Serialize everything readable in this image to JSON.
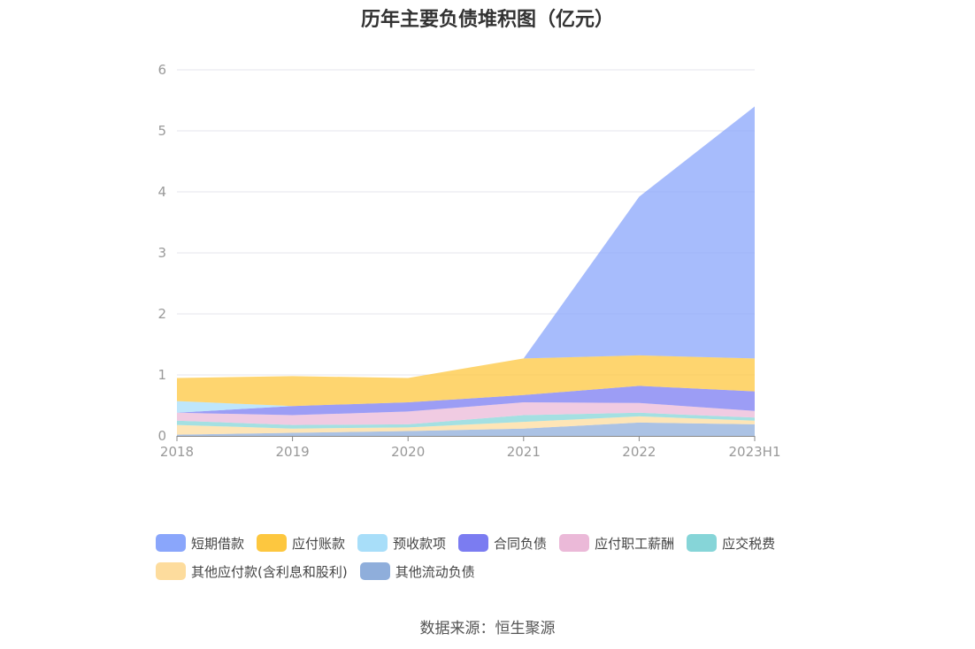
{
  "title": "历年主要负债堆积图（亿元）",
  "source": "数据来源：恒生聚源",
  "colors": {
    "短期借款": "#8aa6fb",
    "应付账款": "#fdc73f",
    "预收款项": "#a8def9",
    "合同负债": "#7b7cf1",
    "应付职工薪酬": "#ebb9d8",
    "应交税费": "#86d5d8",
    "其他应付款(含利息和股利)": "#fddc9d",
    "其他流动负债": "#8faedb"
  },
  "chart_data": {
    "type": "area",
    "stacked": true,
    "title": "历年主要负债堆积图（亿元）",
    "categories": [
      "2018",
      "2019",
      "2020",
      "2021",
      "2022",
      "2023H1"
    ],
    "ylim": [
      0,
      6
    ],
    "yticks": [
      0,
      1,
      2,
      3,
      4,
      5,
      6
    ],
    "grid": true,
    "legend_position": "bottom",
    "series": [
      {
        "name": "其他流动负债",
        "values": [
          0.02,
          0.05,
          0.08,
          0.12,
          0.22,
          0.19
        ]
      },
      {
        "name": "其他应付款(含利息和股利)",
        "values": [
          0.16,
          0.07,
          0.06,
          0.11,
          0.1,
          0.06
        ]
      },
      {
        "name": "应交税费",
        "values": [
          0.07,
          0.06,
          0.05,
          0.11,
          0.06,
          0.05
        ]
      },
      {
        "name": "应付职工薪酬",
        "values": [
          0.13,
          0.16,
          0.21,
          0.21,
          0.16,
          0.11
        ]
      },
      {
        "name": "合同负债",
        "values": [
          0.0,
          0.15,
          0.15,
          0.12,
          0.28,
          0.32
        ]
      },
      {
        "name": "预收款项",
        "values": [
          0.19,
          0.0,
          0.0,
          0.0,
          0.0,
          0.0
        ]
      },
      {
        "name": "应付账款",
        "values": [
          0.38,
          0.49,
          0.4,
          0.6,
          0.5,
          0.54
        ]
      },
      {
        "name": "短期借款",
        "values": [
          0.0,
          0.0,
          0.0,
          0.0,
          2.6,
          4.13
        ]
      }
    ]
  },
  "legend": {
    "rows": [
      [
        "短期借款",
        "应付账款",
        "预收款项",
        "合同负债",
        "应付职工薪酬",
        "应交税费"
      ],
      [
        "其他应付款(含利息和股利)",
        "其他流动负债"
      ]
    ]
  }
}
